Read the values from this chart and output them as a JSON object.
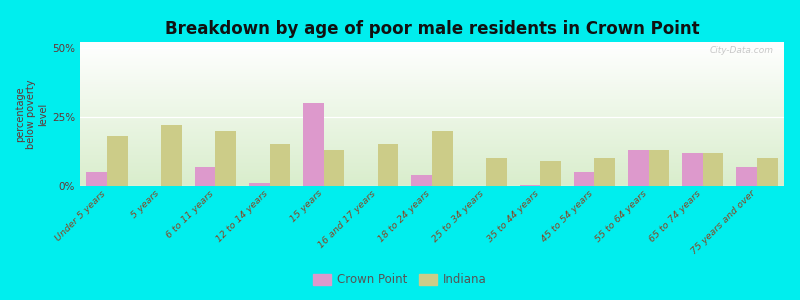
{
  "title": "Breakdown by age of poor male residents in Crown Point",
  "categories": [
    "Under 5 years",
    "5 years",
    "6 to 11 years",
    "12 to 14 years",
    "15 years",
    "16 and 17 years",
    "18 to 24 years",
    "25 to 34 years",
    "35 to 44 years",
    "45 to 54 years",
    "55 to 64 years",
    "65 to 74 years",
    "75 years and over"
  ],
  "crown_point": [
    5,
    0,
    7,
    1,
    30,
    0,
    4,
    0,
    0.5,
    5,
    13,
    12,
    7
  ],
  "indiana": [
    18,
    22,
    20,
    15,
    13,
    15,
    20,
    10,
    9,
    10,
    13,
    12,
    10
  ],
  "crown_point_color": "#dd99cc",
  "indiana_color": "#cccc88",
  "ylabel": "percentage\nbelow poverty\nlevel",
  "ylim": [
    0,
    52
  ],
  "yticks": [
    0,
    25,
    50
  ],
  "ytick_labels": [
    "0%",
    "25%",
    "50%"
  ],
  "plot_bg_top": "#ffffff",
  "plot_bg_bottom": "#d8eecc",
  "outer_background": "#00eeee",
  "title_fontsize": 12,
  "bar_width": 0.38,
  "legend_labels": [
    "Crown Point",
    "Indiana"
  ],
  "figsize": [
    8.0,
    3.0
  ],
  "dpi": 100
}
